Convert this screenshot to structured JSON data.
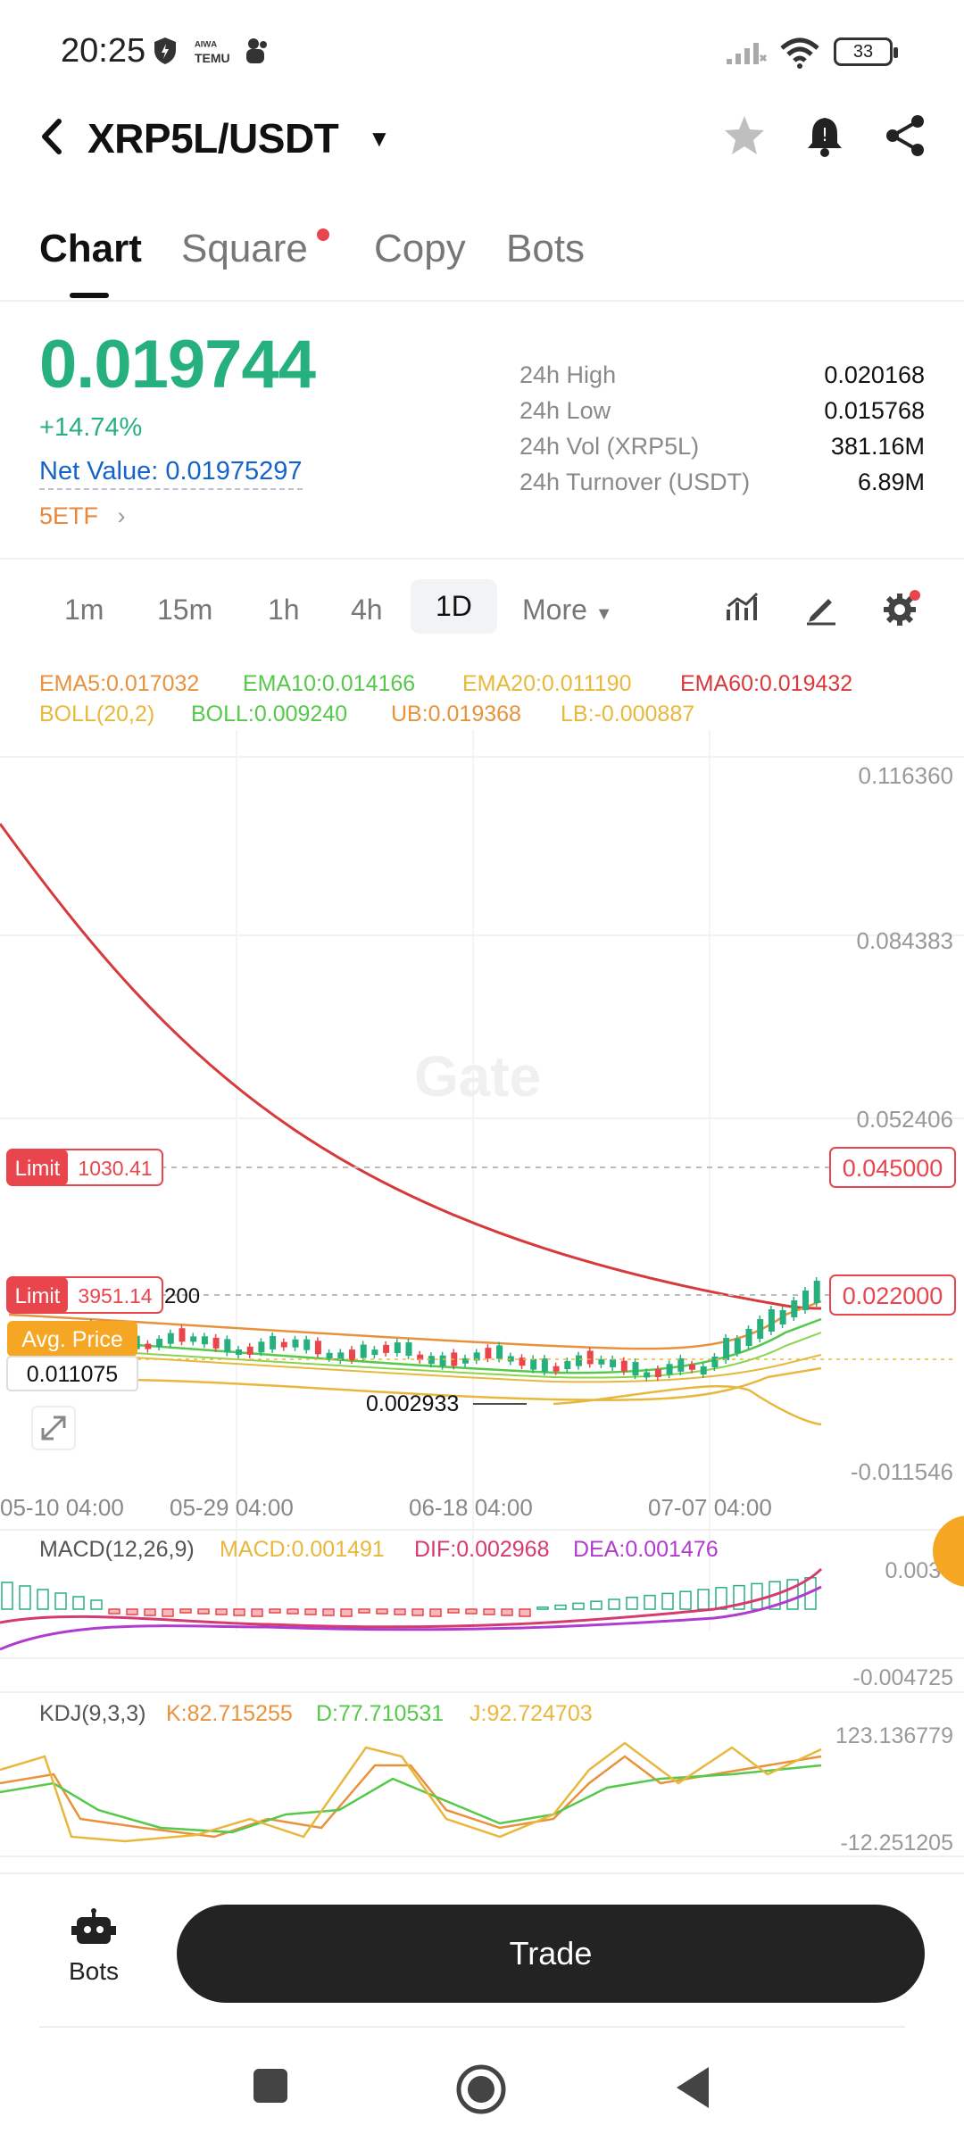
{
  "status_bar": {
    "time": "20:25",
    "app_icon_text": "ᴬᴵ ᵂᴬ\nTEMU",
    "battery": "33"
  },
  "header": {
    "pair": "XRP5L/USDT",
    "back_icon": "chevron-left-icon",
    "icons": [
      "star-icon",
      "bell-icon",
      "share-icon"
    ]
  },
  "tabs": [
    {
      "label": "Chart",
      "active": true
    },
    {
      "label": "Square",
      "active": false,
      "dot": true
    },
    {
      "label": "Copy",
      "active": false
    },
    {
      "label": "Bots",
      "active": false
    }
  ],
  "ticker": {
    "price": "0.019744",
    "change": "+14.74%",
    "net_value_label": "Net Value: ",
    "net_value": "0.01975297",
    "etf": "5ETF",
    "stats": [
      {
        "label": "24h High",
        "value": "0.020168"
      },
      {
        "label": "24h Low",
        "value": "0.015768"
      },
      {
        "label": "24h Vol (XRP5L)",
        "value": "381.16M"
      },
      {
        "label": "24h Turnover (USDT)",
        "value": "6.89M"
      }
    ]
  },
  "timeframes": [
    "1m",
    "15m",
    "1h",
    "4h",
    "1D",
    "More"
  ],
  "selected_timeframe": "1D",
  "indicators": {
    "ema": [
      "EMA5:0.017032",
      "EMA10:0.014166",
      "EMA20:0.011190",
      "EMA60:0.019432"
    ],
    "boll": [
      "BOLL(20,2)",
      "BOLL:0.009240",
      "UB:0.019368",
      "LB:-0.000887"
    ],
    "macd": [
      "MACD(12,26,9)",
      "MACD:0.001491",
      "DIF:0.002968",
      "DEA:0.001476"
    ],
    "kdj": [
      "KDJ(9,3,3)",
      "K:82.715255",
      "D:77.710531",
      "J:92.724703"
    ]
  },
  "chart_data": {
    "type": "candlestick",
    "price_axis": [
      "0.116360",
      "0.084383",
      "0.052406",
      "-0.011546"
    ],
    "x_axis": [
      "05-10 04:00",
      "05-29 04:00",
      "06-18 04:00",
      "07-07 04:00"
    ],
    "orders": [
      {
        "type": "Limit",
        "qty": "1030.41",
        "price": "0.045000"
      },
      {
        "type": "Limit",
        "qty": "3951.14",
        "price": "0.022000"
      }
    ],
    "avg_price_label": "Avg. Price",
    "avg_price": "0.011075",
    "low_marker": "0.002933",
    "hidden_marker": "200",
    "watermark": "Gate",
    "macd_axis": [
      "0.0036",
      "-0.004725"
    ],
    "kdj_axis": [
      "123.136779",
      "-12.251205"
    ]
  },
  "colors": {
    "up": "#26b07e",
    "down": "#e8454c",
    "ema5": "#e8923d",
    "ema10": "#55c94a",
    "ema20": "#e8b83d",
    "ema60": "#d63a3a"
  },
  "bottom": {
    "bots_label": "Bots",
    "trade_label": "Trade"
  }
}
